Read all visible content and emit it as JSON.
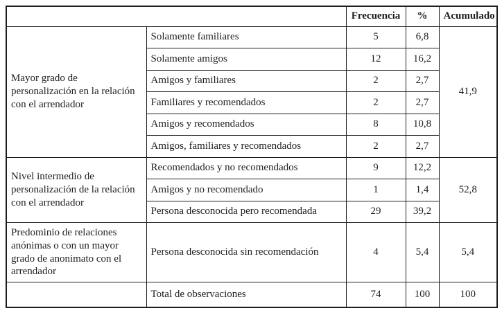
{
  "table": {
    "headers": {
      "frecuencia": "Frecuencia",
      "percent": "%",
      "acumulado": "Acumulado"
    },
    "groups": [
      {
        "category": "Mayor grado de personalización en la relación con el arrendador",
        "acumulado": "41,9",
        "rows": [
          {
            "label": "Solamente familiares",
            "frecuencia": "5",
            "percent": "6,8"
          },
          {
            "label": "Solamente amigos",
            "frecuencia": "12",
            "percent": "16,2"
          },
          {
            "label": "Amigos y familiares",
            "frecuencia": "2",
            "percent": "2,7"
          },
          {
            "label": "Familiares y recomendados",
            "frecuencia": "2",
            "percent": "2,7"
          },
          {
            "label": "Amigos y recomendados",
            "frecuencia": "8",
            "percent": "10,8"
          },
          {
            "label": "Amigos, familiares y recomendados",
            "frecuencia": "2",
            "percent": "2,7"
          }
        ]
      },
      {
        "category": "Nivel intermedio de personalización de la relación con el arrendador",
        "acumulado": "52,8",
        "rows": [
          {
            "label": "Recomendados y no recomendados",
            "frecuencia": "9",
            "percent": "12,2"
          },
          {
            "label": "Amigos y no recomendado",
            "frecuencia": "1",
            "percent": "1,4"
          },
          {
            "label": "Persona desconocida pero recomendada",
            "frecuencia": "29",
            "percent": "39,2"
          }
        ]
      },
      {
        "category": "Predominio de relaciones anónimas o con un mayor grado de anonimato con el arrendador",
        "acumulado": "5,4",
        "rows": [
          {
            "label": "Persona desconocida sin recomendación",
            "frecuencia": "4",
            "percent": "5,4"
          }
        ]
      }
    ],
    "total_row": {
      "label": "Total de observaciones",
      "frecuencia": "74",
      "percent": "100",
      "acumulado": "100"
    },
    "colors": {
      "text": "#1e1e21",
      "border": "#1d1d1d",
      "background": "#ffffff"
    }
  }
}
